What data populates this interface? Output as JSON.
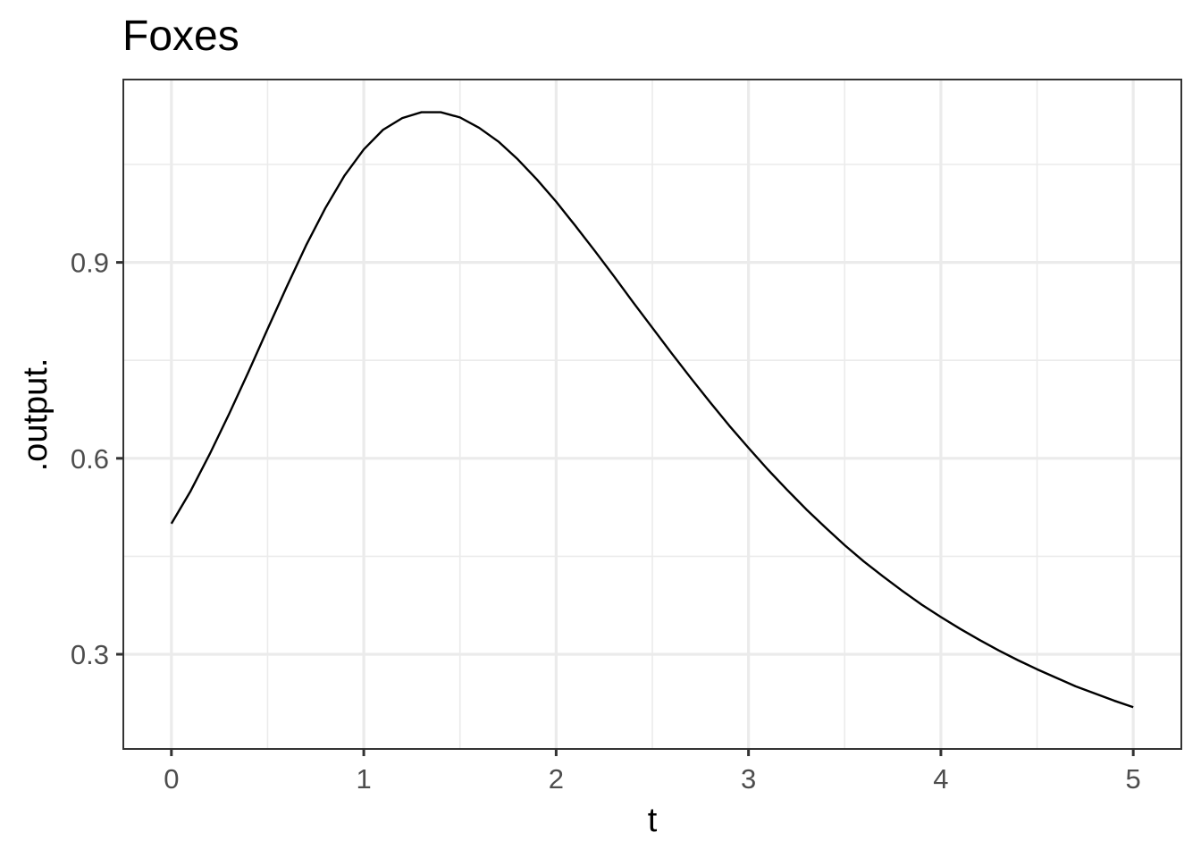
{
  "chart_data": {
    "type": "line",
    "title": "Foxes",
    "xlabel": "t",
    "ylabel": ".output.",
    "xlim": [
      -0.25,
      5.25
    ],
    "ylim": [
      0.155,
      1.18
    ],
    "x_ticks": [
      0,
      1,
      2,
      3,
      4,
      5
    ],
    "x_tick_labels": [
      "0",
      "1",
      "2",
      "3",
      "4",
      "5"
    ],
    "x_minor_ticks": [
      0.5,
      1.5,
      2.5,
      3.5,
      4.5
    ],
    "y_ticks": [
      0.3,
      0.6,
      0.9
    ],
    "y_tick_labels": [
      "0.3",
      "0.6",
      "0.9"
    ],
    "y_minor_ticks": [
      0.45,
      0.75,
      1.05
    ],
    "grid": true,
    "legend": "none",
    "series": [
      {
        "color": "#000000",
        "x": [
          0,
          0.1,
          0.2,
          0.3,
          0.4,
          0.5,
          0.6,
          0.7,
          0.8,
          0.9,
          1.0,
          1.1,
          1.2,
          1.3,
          1.4,
          1.5,
          1.6,
          1.7,
          1.8,
          1.9,
          2.0,
          2.1,
          2.2,
          2.3,
          2.4,
          2.5,
          2.6,
          2.7,
          2.8,
          2.9,
          3.0,
          3.1,
          3.2,
          3.3,
          3.4,
          3.5,
          3.6,
          3.7,
          3.8,
          3.9,
          4.0,
          4.1,
          4.2,
          4.3,
          4.4,
          4.5,
          4.6,
          4.7,
          4.8,
          4.9,
          5.0
        ],
        "y": [
          0.5,
          0.55,
          0.607,
          0.668,
          0.732,
          0.798,
          0.863,
          0.926,
          0.983,
          1.033,
          1.073,
          1.103,
          1.121,
          1.13,
          1.13,
          1.122,
          1.106,
          1.085,
          1.058,
          1.027,
          0.993,
          0.956,
          0.918,
          0.879,
          0.839,
          0.8,
          0.761,
          0.723,
          0.686,
          0.65,
          0.616,
          0.583,
          0.552,
          0.522,
          0.494,
          0.467,
          0.442,
          0.419,
          0.397,
          0.376,
          0.357,
          0.339,
          0.322,
          0.306,
          0.291,
          0.277,
          0.264,
          0.251,
          0.24,
          0.229,
          0.219
        ]
      }
    ]
  }
}
